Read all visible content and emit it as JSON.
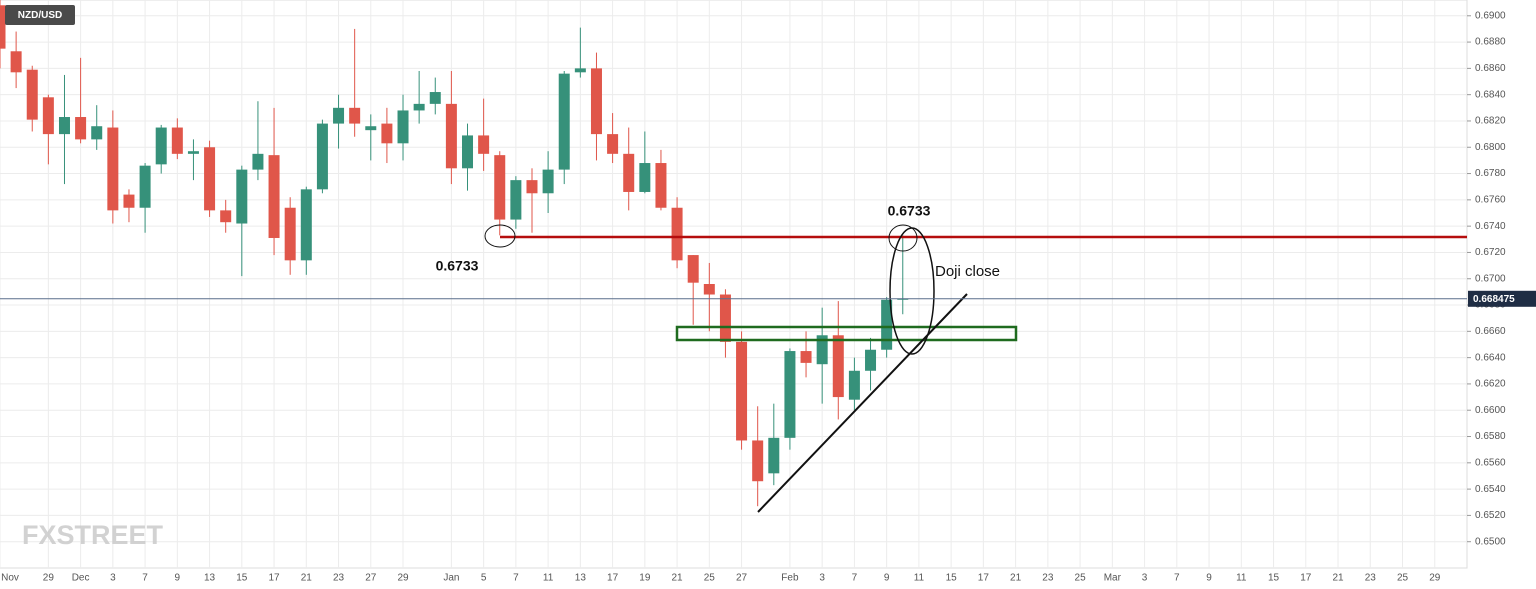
{
  "chart_data": {
    "type": "candlestick",
    "title": "NZD/USD",
    "watermark": "FXSTREET",
    "annotations": [
      "0.6733",
      "0.6733",
      "Doji close"
    ],
    "last_price": 0.668475,
    "up_color": "#36917a",
    "down_color": "#e0564a",
    "grid": true,
    "ylim": [
      0.648,
      0.6912
    ],
    "yticks": [
      {
        "value": 0.65,
        "label": "0.6500"
      },
      {
        "value": 0.652,
        "label": "0.6520"
      },
      {
        "value": 0.654,
        "label": "0.6540"
      },
      {
        "value": 0.656,
        "label": "0.6560"
      },
      {
        "value": 0.658,
        "label": "0.6580"
      },
      {
        "value": 0.66,
        "label": "0.6600"
      },
      {
        "value": 0.662,
        "label": "0.6620"
      },
      {
        "value": 0.664,
        "label": "0.6640"
      },
      {
        "value": 0.666,
        "label": "0.6660"
      },
      {
        "value": 0.668,
        "label": "0.6680"
      },
      {
        "value": 0.67,
        "label": "0.6700"
      },
      {
        "value": 0.672,
        "label": "0.6720"
      },
      {
        "value": 0.674,
        "label": "0.6740"
      },
      {
        "value": 0.676,
        "label": "0.6760"
      },
      {
        "value": 0.678,
        "label": "0.6780"
      },
      {
        "value": 0.68,
        "label": "0.6800"
      },
      {
        "value": 0.682,
        "label": "0.6820"
      },
      {
        "value": 0.684,
        "label": "0.6840"
      },
      {
        "value": 0.686,
        "label": "0.6860"
      },
      {
        "value": 0.688,
        "label": "0.6880"
      },
      {
        "value": 0.69,
        "label": "0.6900"
      }
    ],
    "categories": [
      "Nov",
      null,
      null,
      "29",
      null,
      "Dec",
      null,
      "3",
      null,
      "7",
      null,
      "9",
      null,
      "13",
      null,
      "15",
      null,
      "17",
      null,
      "21",
      null,
      "23",
      null,
      "27",
      null,
      "29",
      null,
      null,
      "Jan",
      null,
      "5",
      null,
      "7",
      null,
      "11",
      null,
      "13",
      null,
      "17",
      null,
      "19",
      null,
      "21",
      null,
      "25",
      null,
      "27",
      null,
      null,
      "Feb",
      null,
      "3",
      null,
      "7",
      null,
      "9",
      null,
      "11",
      null,
      "15",
      null,
      "17",
      null,
      "21",
      null,
      "23",
      null,
      "25",
      null,
      "Mar",
      null,
      "3",
      null,
      "7",
      null,
      "9",
      null,
      "11",
      null,
      "15",
      null,
      "17",
      null,
      "21",
      null,
      "23",
      null,
      "25",
      null,
      "29",
      null
    ],
    "open": [
      0.6908,
      0.6873,
      0.6859,
      0.6838,
      0.681,
      0.6823,
      0.6806,
      0.6815,
      0.6764,
      0.6754,
      0.6787,
      0.6815,
      0.6795,
      0.68,
      0.6752,
      0.6742,
      0.6783,
      0.6794,
      0.6754,
      0.6714,
      0.6768,
      0.6818,
      0.683,
      0.6813,
      0.6818,
      0.6803,
      0.6828,
      0.6833,
      0.6833,
      0.6784,
      0.6809,
      0.6794,
      0.6745,
      0.6775,
      0.6765,
      0.6783,
      0.6857,
      0.686,
      0.681,
      0.6795,
      0.6766,
      0.6788,
      0.6754,
      0.6718,
      0.6696,
      0.6688,
      0.6652,
      0.6577,
      0.6552,
      0.6579,
      0.6645,
      0.6635,
      0.6657,
      0.6608,
      0.663,
      0.6646,
      0.6684,
      null,
      null,
      null,
      null,
      null,
      null,
      null,
      null,
      null,
      null,
      null,
      null,
      null,
      null,
      null,
      null,
      null,
      null,
      null,
      null,
      null,
      null,
      null,
      null,
      null,
      null,
      null,
      null,
      null,
      null,
      null,
      null,
      null,
      null
    ],
    "high": [
      0.6912,
      0.6888,
      0.6862,
      0.684,
      0.6855,
      0.6868,
      0.6832,
      0.6828,
      0.6768,
      0.6788,
      0.6817,
      0.6822,
      0.6806,
      0.6805,
      0.676,
      0.6786,
      0.6835,
      0.683,
      0.6762,
      0.677,
      0.6821,
      0.684,
      0.689,
      0.6825,
      0.683,
      0.684,
      0.6858,
      0.6853,
      0.6858,
      0.6818,
      0.6837,
      0.6797,
      0.6778,
      0.6784,
      0.6797,
      0.6858,
      0.6891,
      0.6872,
      0.6826,
      0.6815,
      0.6812,
      0.6798,
      0.6762,
      0.6718,
      0.6712,
      0.6692,
      0.666,
      0.6603,
      0.6605,
      0.6647,
      0.666,
      0.6678,
      0.6683,
      0.664,
      0.6655,
      0.6686,
      0.6733,
      null,
      null,
      null,
      null,
      null,
      null,
      null,
      null,
      null,
      null,
      null,
      null,
      null,
      null,
      null,
      null,
      null,
      null,
      null,
      null,
      null,
      null,
      null,
      null,
      null,
      null,
      null,
      null,
      null,
      null,
      null,
      null,
      null,
      null
    ],
    "low": [
      0.686,
      0.6845,
      0.6812,
      0.6787,
      0.6772,
      0.6803,
      0.6798,
      0.6742,
      0.6743,
      0.6735,
      0.678,
      0.6791,
      0.6775,
      0.6747,
      0.6735,
      0.6702,
      0.6775,
      0.6718,
      0.6703,
      0.6703,
      0.6765,
      0.6799,
      0.6808,
      0.679,
      0.6788,
      0.679,
      0.6818,
      0.6825,
      0.6772,
      0.6767,
      0.6782,
      0.6733,
      0.6738,
      0.6735,
      0.675,
      0.6772,
      0.6853,
      0.679,
      0.6788,
      0.6752,
      0.6765,
      0.6752,
      0.6708,
      0.6665,
      0.666,
      0.664,
      0.657,
      0.6527,
      0.6543,
      0.657,
      0.6625,
      0.6605,
      0.6593,
      0.66,
      0.6615,
      0.664,
      0.6673,
      null,
      null,
      null,
      null,
      null,
      null,
      null,
      null,
      null,
      null,
      null,
      null,
      null,
      null,
      null,
      null,
      null,
      null,
      null,
      null,
      null,
      null,
      null,
      null,
      null,
      null,
      null,
      null,
      null,
      null,
      null,
      null,
      null,
      null
    ],
    "close": [
      0.6875,
      0.6857,
      0.6821,
      0.681,
      0.6823,
      0.6806,
      0.6816,
      0.6752,
      0.6754,
      0.6786,
      0.6815,
      0.6795,
      0.6797,
      0.6752,
      0.6743,
      0.6783,
      0.6795,
      0.6731,
      0.6714,
      0.6768,
      0.6818,
      0.683,
      0.6818,
      0.6816,
      0.6803,
      0.6828,
      0.6833,
      0.6842,
      0.6784,
      0.6809,
      0.6795,
      0.6745,
      0.6775,
      0.6765,
      0.6783,
      0.6856,
      0.686,
      0.681,
      0.6795,
      0.6766,
      0.6788,
      0.6754,
      0.6714,
      0.6697,
      0.6688,
      0.6652,
      0.6577,
      0.6546,
      0.6579,
      0.6645,
      0.6636,
      0.6657,
      0.661,
      0.663,
      0.6646,
      0.6684,
      0.6685,
      null,
      null,
      null,
      null,
      null,
      null,
      null,
      null,
      null,
      null,
      null,
      null,
      null,
      null,
      null,
      null,
      null,
      null,
      null,
      null,
      null,
      null,
      null,
      null,
      null,
      null,
      null,
      null,
      null,
      null,
      null,
      null,
      null,
      null
    ]
  }
}
